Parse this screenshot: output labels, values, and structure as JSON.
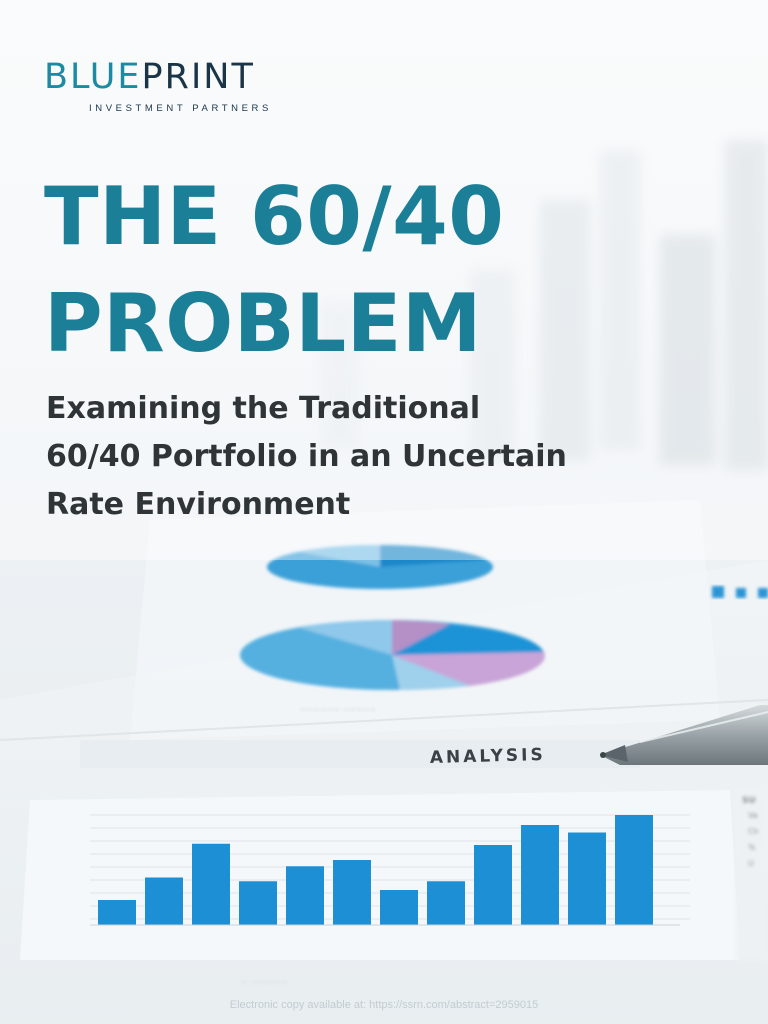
{
  "logo": {
    "word_blue": "BLU",
    "word_e": "E",
    "word_dark": "PRINT",
    "tagline": "INVESTMENT PARTNERS"
  },
  "title_lines": [
    "THE 60/40",
    "PROBLEM"
  ],
  "subtitle_lines": [
    "Examining the Traditional",
    "60/40 Portfolio in an Uncertain",
    "Rate Environment"
  ],
  "photo": {
    "report_heading": "ANALYSIS",
    "bar_values": [
      20,
      38,
      65,
      35,
      47,
      52,
      28,
      35,
      64,
      80,
      74,
      88
    ],
    "colors": {
      "accent": "#1b7f98",
      "bars": "#1d8fd4",
      "pen": "#9aa3a8"
    }
  },
  "footer": "Electronic copy available at: https://ssrn.com/abstract=2959015"
}
